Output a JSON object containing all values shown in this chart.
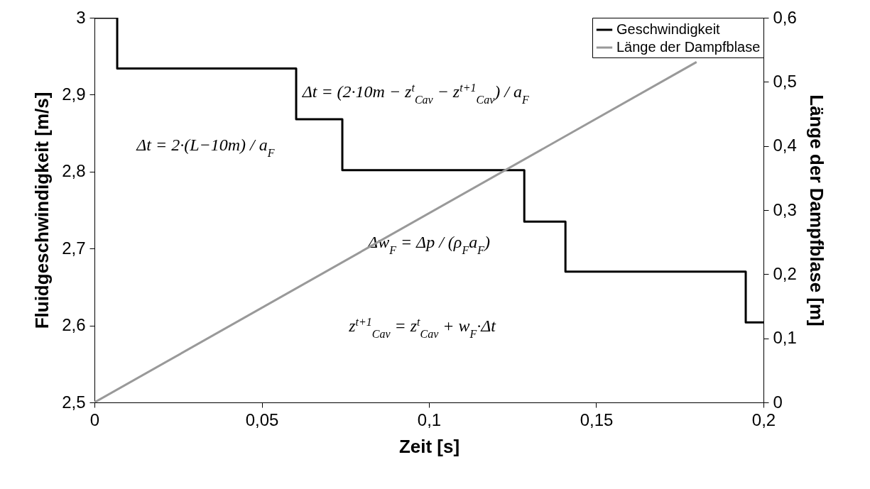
{
  "chart_data": {
    "type": "line",
    "xlabel": "Zeit [s]",
    "ylabel": "Fluidgeschwindigkeit [m/s]",
    "y2label": "Länge der Dampfblase [m]",
    "xlim": [
      0,
      0.2
    ],
    "xticks": [
      {
        "value": 0,
        "label": "0"
      },
      {
        "value": 0.05,
        "label": "0,05"
      },
      {
        "value": 0.1,
        "label": "0,1"
      },
      {
        "value": 0.15,
        "label": "0,15"
      },
      {
        "value": 0.2,
        "label": "0,2"
      }
    ],
    "ylim": [
      2.5,
      3
    ],
    "yticks": [
      {
        "value": 2.5,
        "label": "2,5"
      },
      {
        "value": 2.6,
        "label": "2,6"
      },
      {
        "value": 2.7,
        "label": "2,7"
      },
      {
        "value": 2.8,
        "label": "2,8"
      },
      {
        "value": 2.9,
        "label": "2,9"
      },
      {
        "value": 3,
        "label": "3"
      }
    ],
    "y2lim": [
      0,
      0.6
    ],
    "y2ticks": [
      {
        "value": 0,
        "label": "0"
      },
      {
        "value": 0.1,
        "label": "0,1"
      },
      {
        "value": 0.2,
        "label": "0,2"
      },
      {
        "value": 0.3,
        "label": "0,3"
      },
      {
        "value": 0.4,
        "label": "0,4"
      },
      {
        "value": 0.5,
        "label": "0,5"
      },
      {
        "value": 0.6,
        "label": "0,6"
      }
    ],
    "series": [
      {
        "name": "Geschwindigkeit",
        "type": "step",
        "color": "#000000",
        "x": [
          0,
          0.0068,
          0.0603,
          0.0741,
          0.1285,
          0.1408,
          0.1947,
          0.2
        ],
        "values": [
          3,
          2.934,
          2.868,
          2.802,
          2.735,
          2.67,
          2.604,
          2.604
        ]
      },
      {
        "name": "Länge der Dampfblase",
        "type": "line",
        "axis": "y2",
        "color": "#999999",
        "x": [
          0,
          0.18
        ],
        "values": [
          0,
          0.531
        ]
      }
    ],
    "annotations": [
      "Δt = 2·(L−10m) / a$_{F}$",
      "Δt = (2·10m − z$^{t}$$_{Cav}$ − z$^{t+1}$$_{Cav}$) / a$_{F}$",
      "Δw$_{F}$ = Δp / (ρ$_{F}$a$_{F}$)",
      "z$^{t+1}$$_{Cav}$ = z$^{t}$$_{Cav}$ + w$_{F}$·Δt"
    ],
    "legend": "top right",
    "grid": false
  }
}
